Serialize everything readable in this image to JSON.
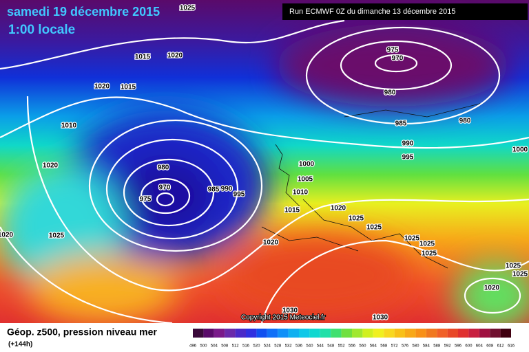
{
  "header": {
    "date": "samedi 19 décembre 2015",
    "time": "1:00 locale",
    "run": "Run ECMWF 0Z du dimanche 13 décembre 2015"
  },
  "isobar_labels": [
    "1025",
    "1015",
    "1020",
    "1020",
    "1015",
    "975",
    "970",
    "980",
    "985",
    "980",
    "990",
    "995",
    "1000",
    "1010",
    "1020",
    "980",
    "970",
    "975",
    "985",
    "990",
    "995",
    "1000",
    "1005",
    "1010",
    "1015",
    "1020",
    "1025",
    "1025",
    "1025",
    "1025",
    "1025",
    "1020",
    "1025",
    "1020",
    "1025",
    "1025",
    "1020",
    "1030",
    "1030"
  ],
  "copyright": "Copyright 2015 Meteociel.fr",
  "footer": {
    "title": "Géop. z500, pression niveau mer",
    "lead": "(+144h)"
  },
  "legend": {
    "ticks": [
      496,
      500,
      504,
      508,
      512,
      516,
      520,
      524,
      528,
      532,
      536,
      540,
      544,
      548,
      552,
      556,
      560,
      564,
      568,
      572,
      576,
      580,
      584,
      588,
      592,
      596,
      600,
      604,
      608,
      612,
      616
    ]
  }
}
